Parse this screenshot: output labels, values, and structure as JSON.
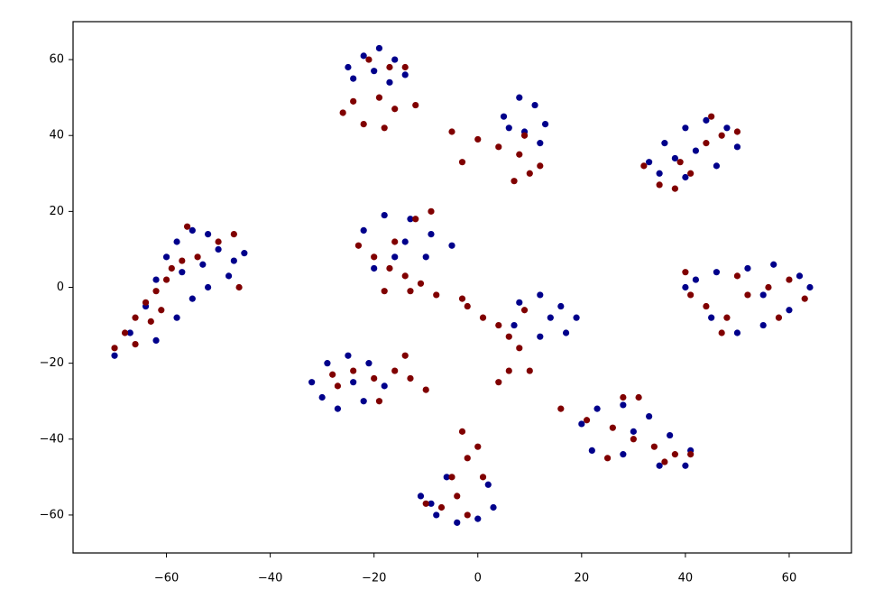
{
  "chart_data": {
    "type": "scatter",
    "xlim": [
      -78,
      72
    ],
    "ylim": [
      -70,
      70
    ],
    "xticks": [
      {
        "value": -60,
        "label": "−60"
      },
      {
        "value": -40,
        "label": "−40"
      },
      {
        "value": -20,
        "label": "−20"
      },
      0,
      20,
      40,
      60
    ],
    "yticks": [
      {
        "value": -60,
        "label": "−60"
      },
      {
        "value": -40,
        "label": "−40"
      },
      {
        "value": -20,
        "label": "−20"
      },
      0,
      20,
      40,
      60
    ],
    "grid": false,
    "series": [
      {
        "color": "#00008b",
        "x": [
          -70,
          -67,
          -64,
          -62,
          -60,
          -58,
          -55,
          -52,
          -50,
          -47,
          -48,
          -52,
          -55,
          -58,
          -62,
          -53,
          -57,
          -45,
          -25,
          -22,
          -19,
          -16,
          -14,
          -17,
          -24,
          -20,
          5,
          8,
          11,
          13,
          9,
          6,
          12,
          33,
          36,
          40,
          44,
          48,
          50,
          46,
          40,
          35,
          42,
          38,
          -22,
          -18,
          -13,
          -9,
          -5,
          -10,
          -16,
          -20,
          -14,
          42,
          46,
          52,
          57,
          62,
          64,
          60,
          55,
          50,
          45,
          40,
          55,
          8,
          12,
          16,
          19,
          17,
          12,
          7,
          14,
          -32,
          -29,
          -25,
          -21,
          -18,
          -22,
          -27,
          -30,
          -24,
          -11,
          -8,
          -4,
          0,
          3,
          2,
          -6,
          -9,
          20,
          23,
          28,
          33,
          37,
          41,
          40,
          35,
          28,
          22,
          30
        ],
        "values": [
          -18,
          -12,
          -5,
          2,
          8,
          12,
          15,
          14,
          10,
          7,
          3,
          0,
          -3,
          -8,
          -14,
          6,
          4,
          9,
          58,
          61,
          63,
          60,
          56,
          54,
          55,
          57,
          45,
          50,
          48,
          43,
          41,
          42,
          38,
          33,
          38,
          42,
          44,
          42,
          37,
          32,
          29,
          30,
          36,
          34,
          15,
          19,
          18,
          14,
          11,
          8,
          8,
          5,
          12,
          2,
          4,
          5,
          6,
          3,
          0,
          -6,
          -10,
          -12,
          -8,
          0,
          -2,
          -4,
          -2,
          -5,
          -8,
          -12,
          -13,
          -10,
          -8,
          -25,
          -20,
          -18,
          -20,
          -26,
          -30,
          -32,
          -29,
          -25,
          -55,
          -60,
          -62,
          -61,
          -58,
          -52,
          -50,
          -57,
          -36,
          -32,
          -31,
          -34,
          -39,
          -43,
          -47,
          -47,
          -44,
          -43,
          -38
        ]
      },
      {
        "color": "#800000",
        "x": [
          -70,
          -68,
          -66,
          -64,
          -62,
          -60,
          -59,
          -57,
          -61,
          -66,
          -54,
          -50,
          -47,
          -56,
          -46,
          -63,
          -26,
          -22,
          -18,
          -16,
          -19,
          -24,
          -21,
          -17,
          -14,
          -12,
          -5,
          0,
          4,
          8,
          10,
          7,
          12,
          9,
          -3,
          32,
          35,
          38,
          41,
          44,
          47,
          50,
          45,
          39,
          -23,
          -20,
          -17,
          -14,
          -11,
          -8,
          -13,
          -18,
          -9,
          -12,
          -16,
          41,
          44,
          48,
          52,
          56,
          60,
          63,
          58,
          50,
          47,
          40,
          -2,
          1,
          4,
          6,
          8,
          6,
          4,
          10,
          9,
          -3,
          -28,
          -24,
          -20,
          -16,
          -13,
          -10,
          -14,
          -19,
          -27,
          -3,
          -2,
          0,
          1,
          -4,
          -7,
          -2,
          -10,
          -5,
          16,
          21,
          26,
          30,
          34,
          38,
          41,
          36,
          28,
          31,
          25
        ],
        "values": [
          -16,
          -12,
          -8,
          -4,
          -1,
          2,
          5,
          7,
          -6,
          -15,
          8,
          12,
          14,
          16,
          0,
          -9,
          46,
          43,
          42,
          47,
          50,
          49,
          60,
          58,
          58,
          48,
          41,
          39,
          37,
          35,
          30,
          28,
          32,
          40,
          33,
          32,
          27,
          26,
          30,
          38,
          40,
          41,
          45,
          33,
          11,
          8,
          5,
          3,
          1,
          -2,
          -1,
          -1,
          20,
          18,
          12,
          -2,
          -5,
          -8,
          -2,
          0,
          2,
          -3,
          -8,
          3,
          -12,
          4,
          -5,
          -8,
          -10,
          -13,
          -16,
          -22,
          -25,
          -22,
          -6,
          -3,
          -23,
          -22,
          -24,
          -22,
          -24,
          -27,
          -18,
          -30,
          -26,
          -38,
          -45,
          -42,
          -50,
          -55,
          -58,
          -60,
          -57,
          -50,
          -32,
          -35,
          -37,
          -40,
          -42,
          -44,
          -44,
          -46,
          -29,
          -29,
          -45
        ]
      }
    ]
  }
}
